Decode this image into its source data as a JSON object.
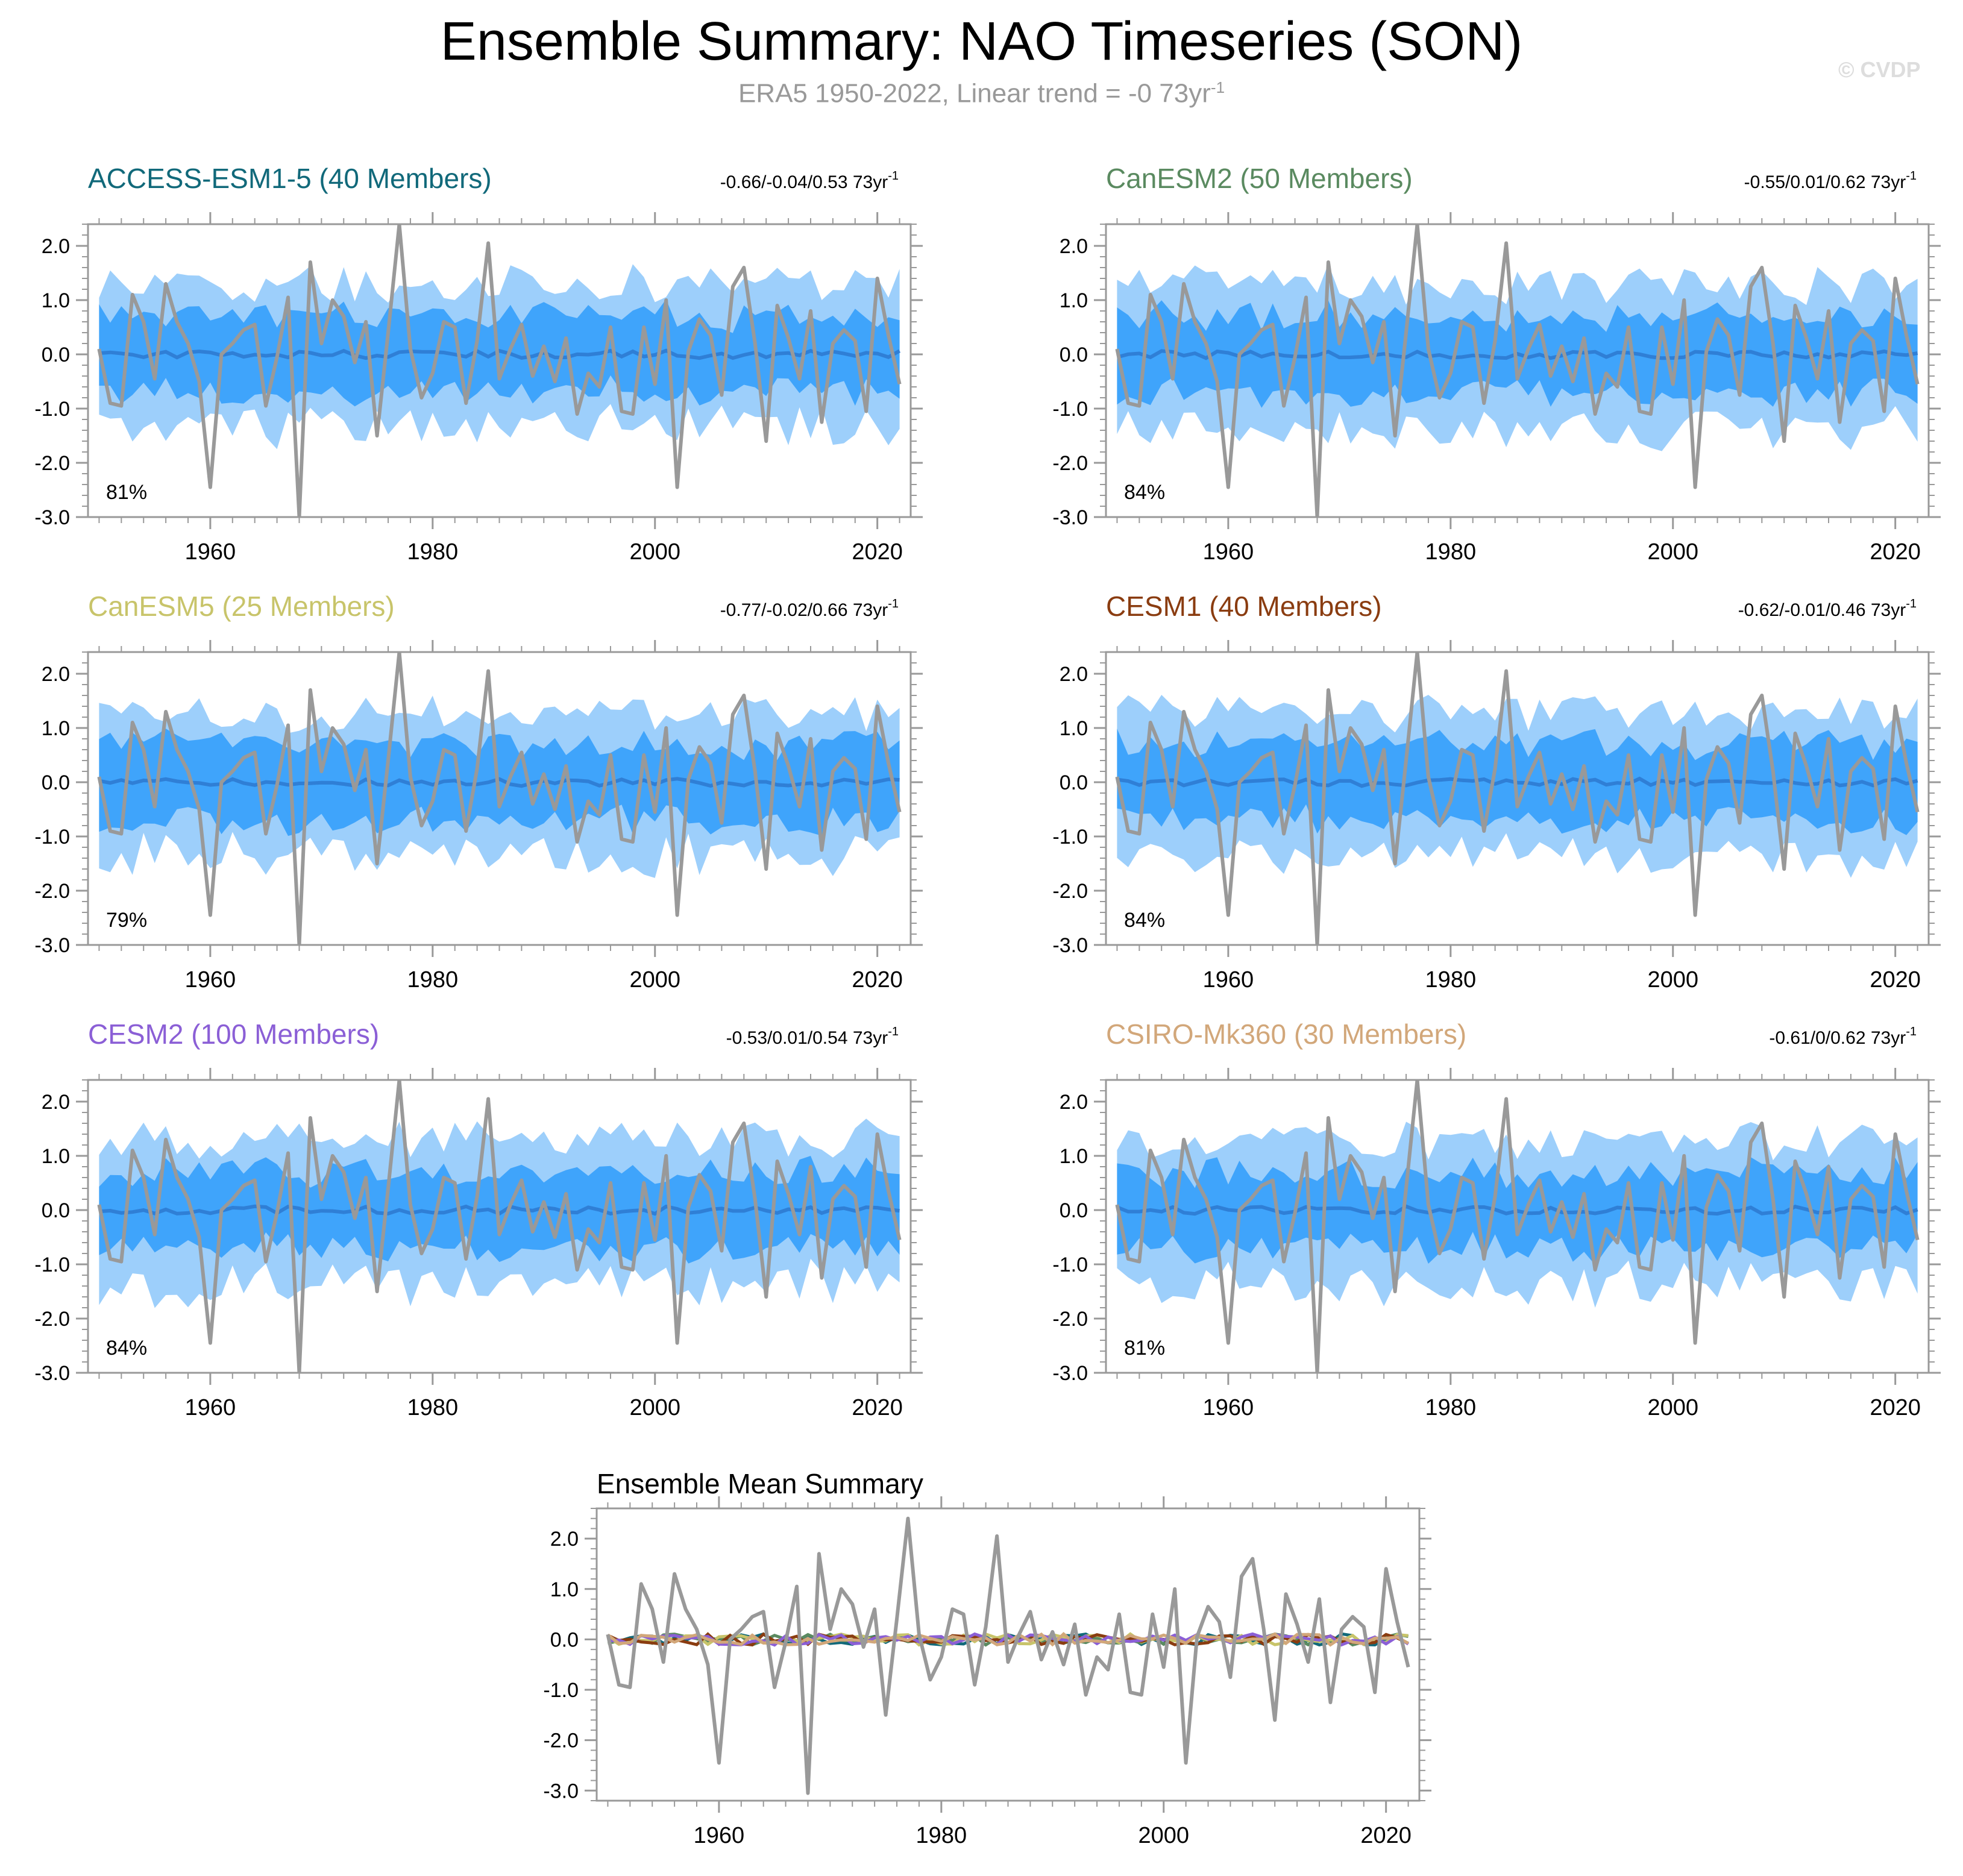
{
  "title": "Ensemble Summary: NAO Timeseries (SON)",
  "subtitle": {
    "text": "ERA5 1950-2022, Linear trend = -0 73yr",
    "sup": "-1"
  },
  "watermark": "© CVDP",
  "colors": {
    "outer_band": "#9dcffb",
    "inner_band": "#3fa4fb",
    "ens_mean": "#2f7fd6",
    "obs": "#999999",
    "frame": "#999999"
  },
  "chart_data": {
    "type": "line",
    "x_range": [
      1950,
      2022
    ],
    "xlim": [
      1949,
      2023
    ],
    "ylim": [
      -3.0,
      2.4
    ],
    "y_ticks": [
      "2.0",
      "1.0",
      "0.0",
      "-1.0",
      "-2.0",
      "-3.0"
    ],
    "y_tick_values": [
      2,
      1,
      0,
      -1,
      -2,
      -3
    ],
    "x_ticks": [
      "1960",
      "1980",
      "2000",
      "2020"
    ],
    "x_tick_values": [
      1960,
      1980,
      2000,
      2020
    ],
    "observed": {
      "name": "ERA5",
      "years": [
        1950,
        1951,
        1952,
        1953,
        1954,
        1955,
        1956,
        1957,
        1958,
        1959,
        1960,
        1961,
        1962,
        1963,
        1964,
        1965,
        1966,
        1967,
        1968,
        1969,
        1970,
        1971,
        1972,
        1973,
        1974,
        1975,
        1976,
        1977,
        1978,
        1979,
        1980,
        1981,
        1982,
        1983,
        1984,
        1985,
        1986,
        1987,
        1988,
        1989,
        1990,
        1991,
        1992,
        1993,
        1994,
        1995,
        1996,
        1997,
        1998,
        1999,
        2000,
        2001,
        2002,
        2003,
        2004,
        2005,
        2006,
        2007,
        2008,
        2009,
        2010,
        2011,
        2012,
        2013,
        2014,
        2015,
        2016,
        2017,
        2018,
        2019,
        2020,
        2021,
        2022
      ],
      "values": [
        0.1,
        -0.9,
        -0.95,
        1.1,
        0.6,
        -0.45,
        1.3,
        0.6,
        0.2,
        -0.5,
        -2.45,
        0.0,
        0.2,
        0.45,
        0.55,
        -0.95,
        -0.05,
        1.05,
        -3.05,
        1.7,
        0.2,
        1.0,
        0.7,
        -0.15,
        0.6,
        -1.5,
        0.4,
        2.4,
        0.1,
        -0.8,
        -0.35,
        0.6,
        0.5,
        -0.9,
        0.25,
        2.05,
        -0.45,
        0.1,
        0.55,
        -0.4,
        0.15,
        -0.5,
        0.3,
        -1.1,
        -0.35,
        -0.6,
        0.5,
        -1.05,
        -1.1,
        0.5,
        -0.55,
        1.0,
        -2.45,
        0.05,
        0.65,
        0.35,
        -0.75,
        1.25,
        1.6,
        0.2,
        -1.6,
        0.9,
        0.3,
        -0.45,
        0.8,
        -1.25,
        0.2,
        0.45,
        0.25,
        -1.05,
        1.4,
        0.35,
        -0.55
      ]
    },
    "panels": [
      {
        "label": "ACCESS-ESM1-5 (40 Members)",
        "color": "#11697a",
        "range_text": "-0.66/-0.04/0.53 73yr",
        "sup": "-1",
        "percent": "81%",
        "seed": 11
      },
      {
        "label": "CanESM2 (50 Members)",
        "color": "#5a8a60",
        "range_text": "-0.55/0.01/0.62 73yr",
        "sup": "-1",
        "percent": "84%",
        "seed": 23
      },
      {
        "label": "CanESM5 (25 Members)",
        "color": "#c8c46a",
        "range_text": "-0.77/-0.02/0.66 73yr",
        "sup": "-1",
        "percent": "79%",
        "seed": 37
      },
      {
        "label": "CESM1 (40 Members)",
        "color": "#8a3c10",
        "range_text": "-0.62/-0.01/0.46 73yr",
        "sup": "-1",
        "percent": "84%",
        "seed": 41
      },
      {
        "label": "CESM2 (100 Members)",
        "color": "#8b5fd6",
        "range_text": "-0.53/0.01/0.54 73yr",
        "sup": "-1",
        "percent": "84%",
        "seed": 53
      },
      {
        "label": "CSIRO-Mk360 (30 Members)",
        "color": "#d2a77a",
        "range_text": "-0.61/0/0.62 73yr",
        "sup": "-1",
        "percent": "81%",
        "seed": 67
      }
    ],
    "summary": {
      "title": "Ensemble Mean Summary",
      "ylim": [
        -3.2,
        2.6
      ],
      "y_ticks": [
        "2.0",
        "1.0",
        "0.0",
        "-1.0",
        "-2.0",
        "-3.0"
      ],
      "y_tick_values": [
        2,
        1,
        0,
        -1,
        -2,
        -3
      ],
      "x_ticks": [
        "1960",
        "1980",
        "2000",
        "2020"
      ],
      "x_tick_values": [
        1960,
        1980,
        2000,
        2020
      ]
    }
  }
}
